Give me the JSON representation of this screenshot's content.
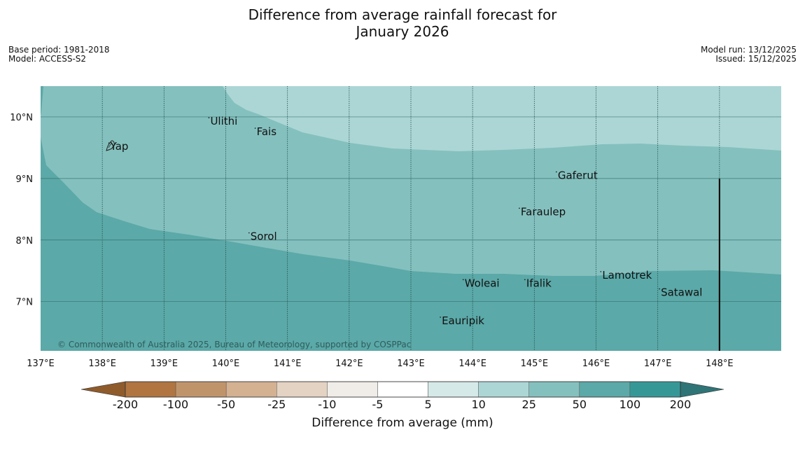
{
  "title": {
    "line1": "Difference from average rainfall forecast for",
    "line2": "January 2026"
  },
  "meta_left": {
    "base_period": "Base period: 1981-2018",
    "model": "Model: ACCESS-S2"
  },
  "meta_right": {
    "model_run": "Model run: 13/12/2025",
    "issued": "Issued: 15/12/2025"
  },
  "map": {
    "lon_range": [
      137,
      149
    ],
    "lat_range": [
      6.2,
      10.5
    ],
    "lon_ticks": [
      {
        "lon": 137,
        "label": "137°E"
      },
      {
        "lon": 138,
        "label": "138°E"
      },
      {
        "lon": 139,
        "label": "139°E"
      },
      {
        "lon": 140,
        "label": "140°E"
      },
      {
        "lon": 141,
        "label": "141°E"
      },
      {
        "lon": 142,
        "label": "142°E"
      },
      {
        "lon": 143,
        "label": "143°E"
      },
      {
        "lon": 144,
        "label": "144°E"
      },
      {
        "lon": 145,
        "label": "145°E"
      },
      {
        "lon": 146,
        "label": "146°E"
      },
      {
        "lon": 147,
        "label": "147°E"
      },
      {
        "lon": 148,
        "label": "148°E"
      }
    ],
    "lat_ticks": [
      {
        "lat": 10,
        "label": "10°N"
      },
      {
        "lat": 9,
        "label": "9°N"
      },
      {
        "lat": 8,
        "label": "8°N"
      },
      {
        "lat": 7,
        "label": "7°N"
      }
    ],
    "places": [
      {
        "name": "Ulithi",
        "lon": 139.75,
        "lat": 9.93
      },
      {
        "name": "Fais",
        "lon": 140.5,
        "lat": 9.76
      },
      {
        "name": "Yap",
        "lon": 138.13,
        "lat": 9.52
      },
      {
        "name": "Gaferut",
        "lon": 145.38,
        "lat": 9.05
      },
      {
        "name": "Faraulep",
        "lon": 144.78,
        "lat": 8.46
      },
      {
        "name": "Sorol",
        "lon": 140.4,
        "lat": 8.06
      },
      {
        "name": "Lamotrek",
        "lon": 146.1,
        "lat": 7.43
      },
      {
        "name": "Woleai",
        "lon": 143.87,
        "lat": 7.3
      },
      {
        "name": "Ifalik",
        "lon": 144.87,
        "lat": 7.3
      },
      {
        "name": "Satawal",
        "lon": 147.05,
        "lat": 7.15
      },
      {
        "name": "Eauripik",
        "lon": 143.5,
        "lat": 6.69
      }
    ],
    "boundary_line": {
      "lon": 148,
      "lat_from": 6.2,
      "lat_to": 9.0
    },
    "copyright": "© Commonwealth of Australia 2025, Bureau of Meteorology, supported by COSPPac"
  },
  "colorbar": {
    "title": "Difference from average (mm)",
    "low_extend_color": "#8f5b2b",
    "high_extend_color": "#2f7476",
    "bins": [
      {
        "color": "#b07540"
      },
      {
        "color": "#c0946b"
      },
      {
        "color": "#d3b191"
      },
      {
        "color": "#e4d2c2"
      },
      {
        "color": "#f0ece7"
      },
      {
        "color": "#ffffff"
      },
      {
        "color": "#d5e9e8"
      },
      {
        "color": "#acd6d5"
      },
      {
        "color": "#84c0be"
      },
      {
        "color": "#5ba9a8"
      },
      {
        "color": "#359897"
      }
    ],
    "labels": [
      "-200",
      "-100",
      "-50",
      "-25",
      "-10",
      "-5",
      "5",
      "10",
      "25",
      "50",
      "100",
      "200"
    ]
  },
  "zone_colors": {
    "10-25": "#acd6d5",
    "25-50": "#84c0be",
    "50-100": "#5ba9a8"
  }
}
